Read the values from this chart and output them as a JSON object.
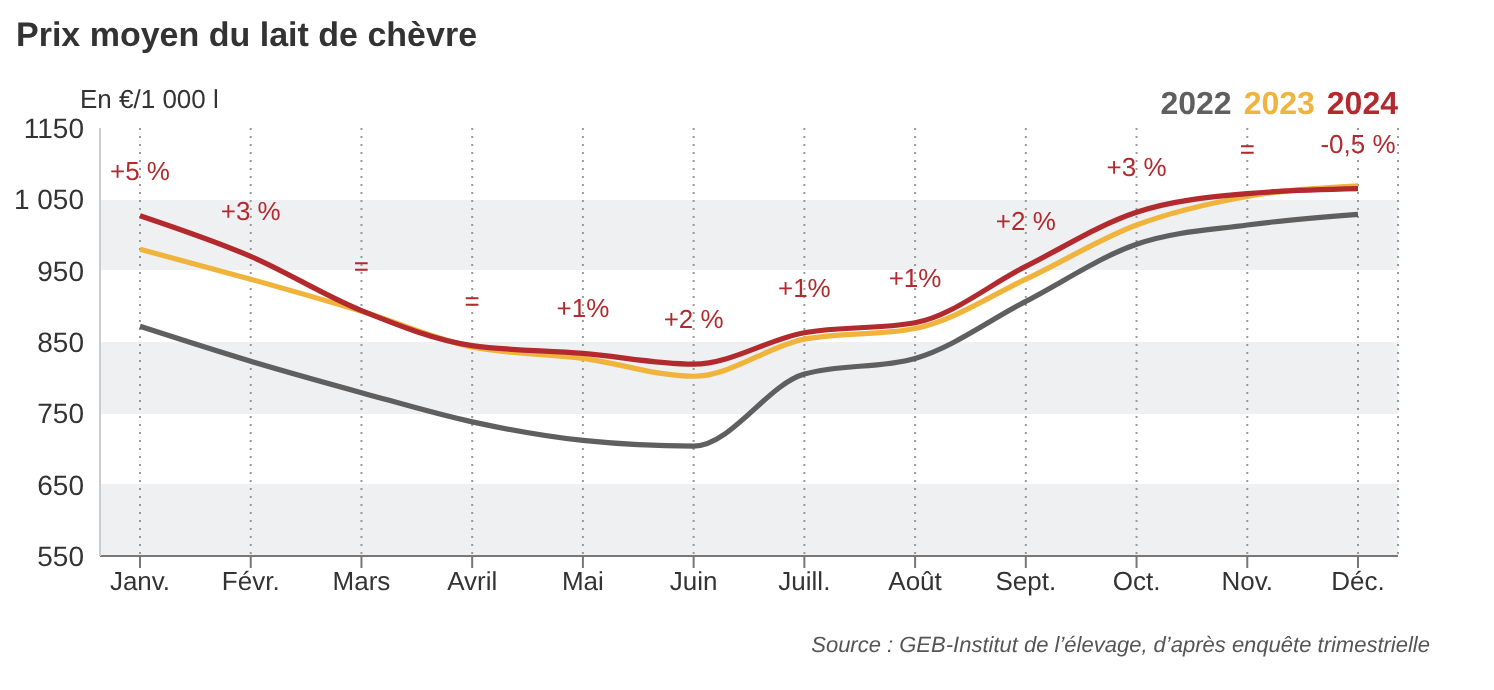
{
  "chart_data": {
    "type": "line",
    "title": "Prix moyen du lait de chèvre",
    "ylabel": "En €/1 000 l",
    "categories": [
      "Janv.",
      "Févr.",
      "Mars",
      "Avril",
      "Mai",
      "Juin",
      "Juill.",
      "Août",
      "Sept.",
      "Oct.",
      "Nov.",
      "Déc."
    ],
    "series": [
      {
        "name": "2022",
        "color": "#5f5f5f",
        "values": [
          872,
          823,
          779,
          738,
          712,
          704,
          805,
          827,
          907,
          987,
          1014,
          1029
        ]
      },
      {
        "name": "2023",
        "color": "#f0b43c",
        "values": [
          980,
          938,
          893,
          843,
          827,
          802,
          854,
          869,
          938,
          1014,
          1054,
          1069
        ]
      },
      {
        "name": "2024",
        "color": "#b22a2e",
        "values": [
          1027,
          970,
          894,
          845,
          834,
          819,
          863,
          877,
          956,
          1032,
          1058,
          1065
        ]
      }
    ],
    "ylim": [
      550,
      1150
    ],
    "yticks": [
      550,
      650,
      750,
      850,
      950,
      {
        "value": 1050,
        "label": "1 050"
      },
      1150
    ],
    "grid": true,
    "legend": "top right",
    "marker": "none",
    "line_style": "solid",
    "annotations": [
      {
        "text": "+5 %",
        "x": "Janv.",
        "y": 1027
      },
      {
        "text": "+3 %",
        "x": "Févr.",
        "y": 970
      },
      {
        "text": "=",
        "x": "Mars",
        "y": 894
      },
      {
        "text": "=",
        "x": "Avril",
        "y": 845
      },
      {
        "text": "+1%",
        "x": "Mai",
        "y": 834
      },
      {
        "text": "+2 %",
        "x": "Juin",
        "y": 819
      },
      {
        "text": "+1%",
        "x": "Juill.",
        "y": 863
      },
      {
        "text": "+1%",
        "x": "Août",
        "y": 877
      },
      {
        "text": "+2 %",
        "x": "Sept.",
        "y": 956
      },
      {
        "text": "+3 %",
        "x": "Oct.",
        "y": 1032
      },
      {
        "text": "=",
        "x": "Nov.",
        "y": 1058
      },
      {
        "text": "-0,5 %",
        "x": "Déc.",
        "y": 1065
      },
      "Source : GEB-Institut de l’élevage, d’après enquête trimestrielle"
    ]
  }
}
